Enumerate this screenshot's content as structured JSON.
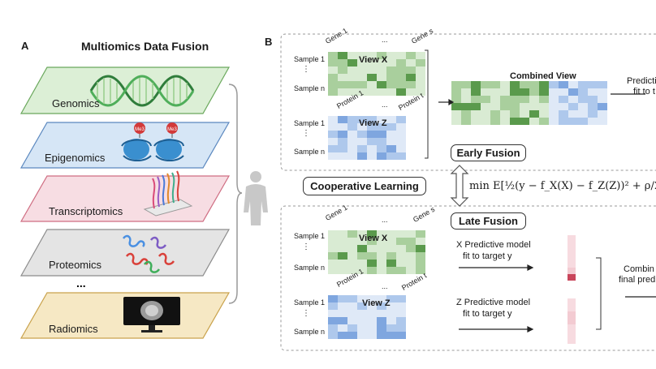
{
  "panel_a": {
    "letter": "A",
    "title": "Multiomics Data Fusion",
    "layers": [
      {
        "label": "Genomics",
        "fill": "#dcefd6",
        "stroke": "#6aa85c"
      },
      {
        "label": "Epigenomics",
        "fill": "#d6e6f6",
        "stroke": "#5b88bf"
      },
      {
        "label": "Transcriptomics",
        "fill": "#f7dde3",
        "stroke": "#cf6d82"
      },
      {
        "label": "Proteomics",
        "fill": "#e4e4e4",
        "stroke": "#8c8c8c"
      },
      {
        "label": "Radiomics",
        "fill": "#f6e8c4",
        "stroke": "#c9a24c"
      }
    ],
    "ellipsis": "...",
    "me3_label": "Me3"
  },
  "panel_b": {
    "letter": "B",
    "early": {
      "view_x": {
        "title": "View X",
        "col_first": "Gene 1",
        "col_dots": "...",
        "col_last": "Gene s",
        "row_first": "Sample 1",
        "row_dots": "⋮",
        "row_last": "Sample n"
      },
      "view_z": {
        "title": "View Z",
        "col_first": "Protein 1",
        "col_dots": "...",
        "col_last": "Protein t",
        "row_first": "Sample 1",
        "row_dots": "⋮",
        "row_last": "Sample n"
      },
      "combined_title": "Combined View",
      "predictive_line1": "Predictiv",
      "predictive_line2": "fit to t",
      "label": "Early Fusion"
    },
    "cooperative_label": "Cooperative Learning",
    "objective": "min E[½(y − f_X(X) − f_Z(Z))² + ρ/2(f_X(",
    "late": {
      "view_x": {
        "title": "View X",
        "col_first": "Gene 1",
        "col_dots": "...",
        "col_last": "Gene s",
        "row_first": "Sample 1",
        "row_dots": "⋮",
        "row_last": "Sample n"
      },
      "view_z": {
        "title": "View Z",
        "col_first": "Protein 1",
        "col_dots": "...",
        "col_last": "Protein t",
        "row_first": "Sample 1",
        "row_dots": "⋮",
        "row_last": "Sample n"
      },
      "x_model_line1": "X Predictive model",
      "x_model_line2": "fit to target y",
      "z_model_line1": "Z Predictive model",
      "z_model_line2": "fit to target y",
      "combine_line1": "Combin",
      "combine_line2": "final predi",
      "label": "Late Fusion"
    }
  },
  "colors": {
    "green_light": "#d9ebd3",
    "green_mid": "#a9cf9d",
    "green_dark": "#5a9a4c",
    "blue_light": "#dfe9f7",
    "blue_mid": "#aec8ec",
    "blue_dark": "#7fa6df",
    "red_dark": "#c9455b",
    "red_light": "#f3cbd2"
  }
}
